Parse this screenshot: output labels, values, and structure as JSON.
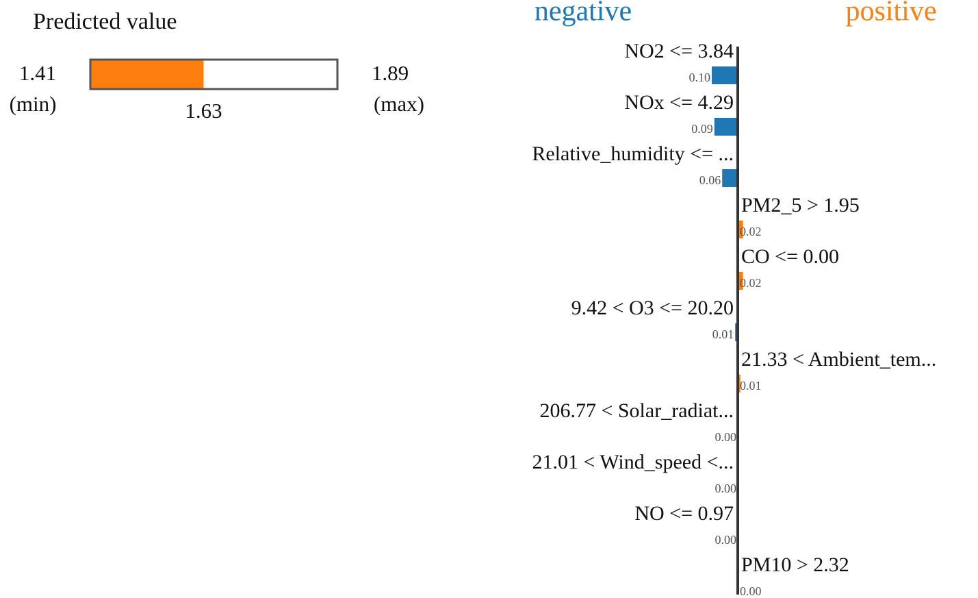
{
  "chart_data": {
    "type": "lime",
    "title": "Predicted value",
    "min": 1.41,
    "min_label": "(min)",
    "max": 1.89,
    "max_label": "(max)",
    "predicted": 1.63,
    "predicted_color": "#ff7f0e",
    "negative_label": "negative",
    "negative_color": "#1f77b4",
    "positive_label": "positive",
    "positive_color": "#ff7f0e",
    "categories": [
      "NO2 <= 3.84",
      "NOx <= 4.29",
      "Relative_humidity <= ...",
      "PM2_5 > 1.95",
      "CO <= 0.00",
      "9.42 < O3 <= 20.20",
      "21.33 < Ambient_tem...",
      "206.77 < Solar_radiat...",
      "21.01 < Wind_speed <...",
      "NO <= 0.97",
      "PM10 > 2.32"
    ],
    "sides": [
      "negative",
      "negative",
      "negative",
      "positive",
      "positive",
      "negative",
      "positive",
      "negative",
      "negative",
      "negative",
      "positive"
    ],
    "values": [
      0.1,
      0.09,
      0.06,
      0.02,
      0.02,
      0.01,
      0.01,
      0.0,
      0.0,
      0.0,
      0.0
    ],
    "value_labels": [
      "0.10",
      "0.09",
      "0.06",
      "0.02",
      "0.02",
      "0.01",
      "0.01",
      "0.00",
      "0.00",
      "0.00",
      "0.00"
    ]
  }
}
